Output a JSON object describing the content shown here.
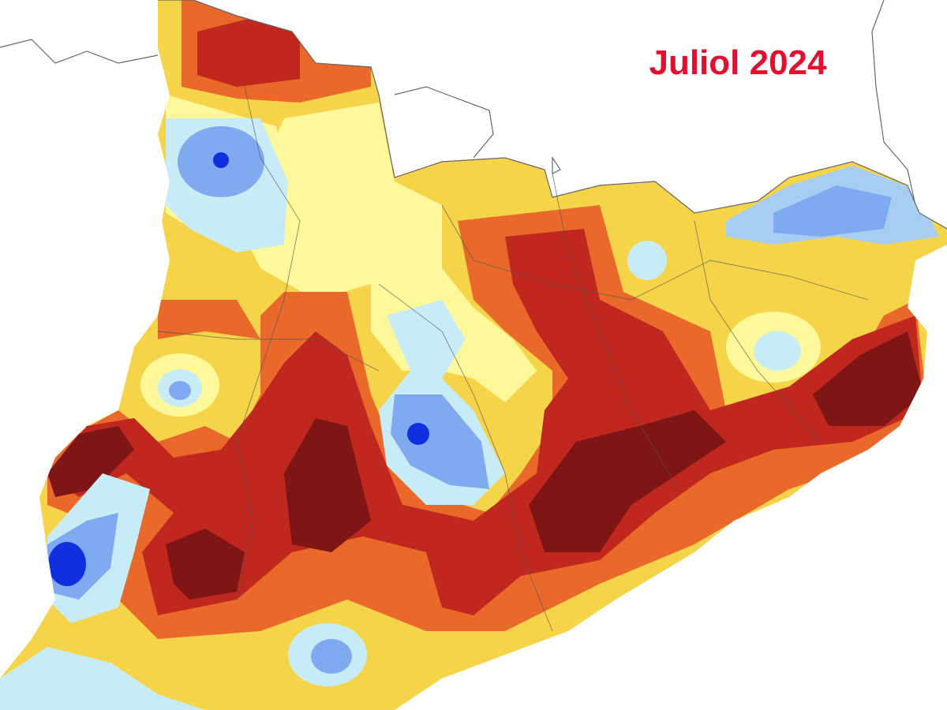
{
  "map": {
    "title": "Juliol 2024"
  }
}
